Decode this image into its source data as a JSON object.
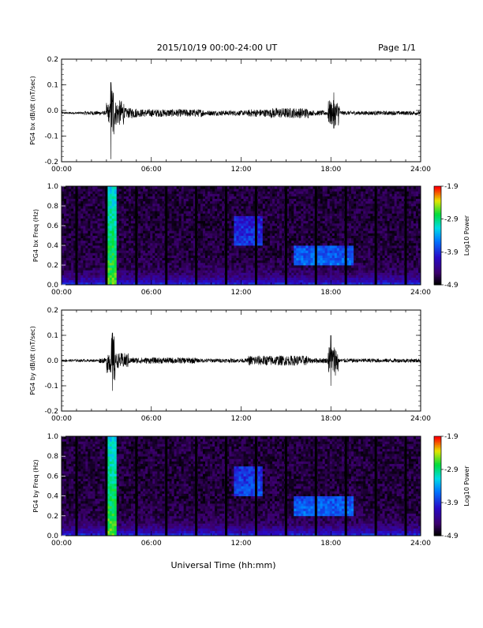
{
  "header": {
    "title": "2015/10/19  00:00-24:00 UT",
    "page": "Page 1/1"
  },
  "footer": {
    "xtitle": "Universal Time (hh:mm)"
  },
  "chart_data": [
    {
      "type": "line",
      "ylabel": "PG4 bx dB/dt (nT/sec)",
      "xlim": [
        0,
        24
      ],
      "ylim": [
        -0.2,
        0.2
      ],
      "x_ticks": [
        "00:00",
        "06:00",
        "12:00",
        "18:00",
        "24:00"
      ],
      "y_ticks": [
        "0.2",
        "0.1",
        "0.0",
        "-0.1",
        "-0.2"
      ],
      "baseline": -0.01,
      "activity": [
        [
          0,
          1.5,
          0.004
        ],
        [
          1.5,
          3.0,
          0.008
        ],
        [
          3.0,
          3.3,
          0.04
        ],
        [
          3.3,
          3.5,
          0.12
        ],
        [
          3.5,
          4.2,
          0.05
        ],
        [
          4.2,
          5.0,
          0.02
        ],
        [
          5.0,
          9.5,
          0.015
        ],
        [
          9.5,
          12.5,
          0.01
        ],
        [
          12.5,
          14.0,
          0.015
        ],
        [
          14.0,
          16.5,
          0.02
        ],
        [
          16.5,
          17.8,
          0.01
        ],
        [
          17.8,
          18.6,
          0.05
        ],
        [
          18.6,
          24,
          0.008
        ]
      ],
      "spikes": [
        {
          "t": 3.3,
          "min": -0.19,
          "max": 0.11
        },
        {
          "t": 18.2,
          "min": -0.07,
          "max": 0.07
        }
      ]
    },
    {
      "type": "heatmap",
      "ylabel": "PG4 bx Freq (Hz)",
      "xlim": [
        0,
        24
      ],
      "ylim": [
        0,
        1.0
      ],
      "x_ticks": [
        "00:00",
        "06:00",
        "12:00",
        "18:00",
        "24:00"
      ],
      "y_ticks": [
        "1.0",
        "0.8",
        "0.6",
        "0.4",
        "0.2",
        "0.0"
      ],
      "colorbar": {
        "label": "Log10 Power",
        "ticks": [
          "-1.9",
          "-2.9",
          "-3.9",
          "-4.9"
        ],
        "range": [
          -4.9,
          -1.9
        ]
      },
      "data_gaps_hours": [
        1.0,
        3.0,
        5.0,
        7.0,
        9.0,
        11.0,
        13.0,
        15.0,
        17.0,
        19.0,
        21.0,
        23.0
      ],
      "features": [
        {
          "t0": 3.0,
          "t1": 3.6,
          "f0": 0.0,
          "f1": 1.0,
          "level": -2.6
        },
        {
          "t0": 11.5,
          "t1": 13.5,
          "f0": 0.4,
          "f1": 0.7,
          "level": -3.6
        },
        {
          "t0": 15.5,
          "t1": 19.5,
          "f0": 0.2,
          "f1": 0.4,
          "level": -3.5
        }
      ]
    },
    {
      "type": "line",
      "ylabel": "PG4 by dB/dt (nT/sec)",
      "xlim": [
        0,
        24
      ],
      "ylim": [
        -0.2,
        0.2
      ],
      "x_ticks": [
        "00:00",
        "06:00",
        "12:00",
        "18:00",
        "24:00"
      ],
      "y_ticks": [
        "0.2",
        "0.1",
        "0.0",
        "-0.1",
        "-0.2"
      ],
      "baseline": 0.0,
      "activity": [
        [
          0,
          2.5,
          0.005
        ],
        [
          2.5,
          3.0,
          0.01
        ],
        [
          3.0,
          3.3,
          0.05
        ],
        [
          3.3,
          3.6,
          0.1
        ],
        [
          3.6,
          4.5,
          0.03
        ],
        [
          4.5,
          9.0,
          0.012
        ],
        [
          9.0,
          12.5,
          0.008
        ],
        [
          12.5,
          14.0,
          0.02
        ],
        [
          14.0,
          16.5,
          0.02
        ],
        [
          16.5,
          17.8,
          0.01
        ],
        [
          17.8,
          18.5,
          0.06
        ],
        [
          18.5,
          24,
          0.008
        ]
      ],
      "spikes": [
        {
          "t": 3.4,
          "min": -0.12,
          "max": 0.11
        },
        {
          "t": 18.0,
          "min": -0.1,
          "max": 0.1
        }
      ]
    },
    {
      "type": "heatmap",
      "ylabel": "PG4 by Freq (Hz)",
      "xlim": [
        0,
        24
      ],
      "ylim": [
        0,
        1.0
      ],
      "x_ticks": [
        "00:00",
        "06:00",
        "12:00",
        "18:00",
        "24:00"
      ],
      "y_ticks": [
        "1.0",
        "0.8",
        "0.6",
        "0.4",
        "0.2",
        "0.0"
      ],
      "colorbar": {
        "label": "Log10 Power",
        "ticks": [
          "-1.9",
          "-2.9",
          "-3.9",
          "-4.9"
        ],
        "range": [
          -4.9,
          -1.9
        ]
      },
      "data_gaps_hours": [
        1.0,
        3.0,
        5.0,
        7.0,
        9.0,
        11.0,
        13.0,
        15.0,
        17.0,
        19.0,
        21.0,
        23.0
      ],
      "features": [
        {
          "t0": 3.0,
          "t1": 3.6,
          "f0": 0.0,
          "f1": 1.0,
          "level": -2.6
        },
        {
          "t0": 11.5,
          "t1": 13.5,
          "f0": 0.4,
          "f1": 0.7,
          "level": -3.5
        },
        {
          "t0": 15.5,
          "t1": 19.5,
          "f0": 0.2,
          "f1": 0.4,
          "level": -3.5
        }
      ]
    }
  ]
}
